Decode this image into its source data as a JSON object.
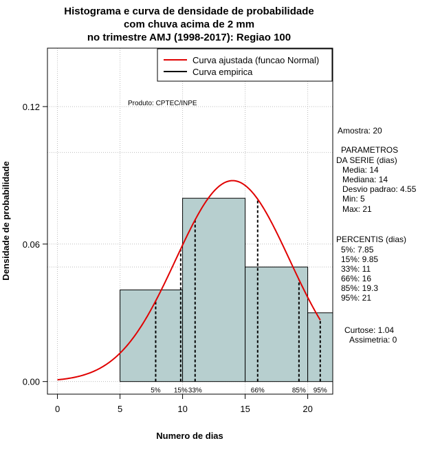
{
  "chart_data": {
    "type": "histogram",
    "title_lines": [
      "Histograma e curva de densidade de probabilidade",
      "com chuva acima de 2 mm",
      "no trimestre AMJ (1998-2017): Regiao 100"
    ],
    "xlabel": "Numero de dias",
    "ylabel": "Densidade de probabilidade",
    "xlim": [
      -0.8,
      22
    ],
    "ylim": [
      -0.0055,
      0.1455
    ],
    "x_ticks": [
      0,
      5,
      10,
      15,
      20
    ],
    "y_ticks": [
      0.0,
      0.06,
      0.12
    ],
    "y_tick_labels": [
      "0.00",
      "0.06",
      "0.12"
    ],
    "grid_y": [
      0.1,
      0.05
    ],
    "bins": [
      {
        "start": 5,
        "end": 10,
        "density": 0.04
      },
      {
        "start": 10,
        "end": 15,
        "density": 0.08
      },
      {
        "start": 15,
        "end": 20,
        "density": 0.05
      },
      {
        "start": 20,
        "end": 22,
        "density": 0.03
      }
    ],
    "normal_fit": {
      "mean": 14,
      "sd": 4.55,
      "x_from": 0,
      "x_to": 21
    },
    "percentile_lines": [
      {
        "label": "5%",
        "x": 7.85
      },
      {
        "label": "15%",
        "x": 9.85
      },
      {
        "label": "33%",
        "x": 11
      },
      {
        "label": "66%",
        "x": 16
      },
      {
        "label": "85%",
        "x": 19.3
      },
      {
        "label": "95%",
        "x": 21
      }
    ],
    "legend": [
      {
        "label": "Curva ajustada (funcao Normal)",
        "color": "#e00000"
      },
      {
        "label": "Curva empirica",
        "color": "#000000"
      }
    ],
    "legend_position": "top-right",
    "product_note": "Produto: CPTEC/INPE",
    "colors": {
      "bar_fill": "#b7cfcf",
      "curve": "#e00000",
      "grid": "#bbbbbb"
    }
  },
  "side_panel": {
    "amostra": "Amostra: 20",
    "param_title_1": "PARAMETROS",
    "param_title_2": "DA SERIE (dias)",
    "params": [
      "Media: 14",
      "Mediana: 14",
      "Desvio padrao: 4.55",
      "Min: 5",
      "Max: 21"
    ],
    "perc_title": "PERCENTIS (dias)",
    "percentis": [
      "5%: 7.85",
      "15%: 9.85",
      "33%: 11",
      "66%: 16",
      "85%: 19.3",
      "95%: 21"
    ],
    "curtose": "Curtose: 1.04",
    "assimetria": "Assimetria: 0"
  }
}
